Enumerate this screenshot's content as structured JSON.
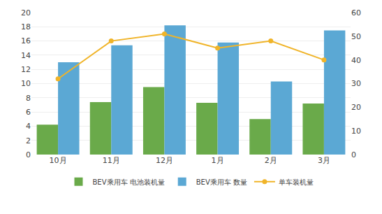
{
  "chart_data": {
    "type": "bar",
    "categories": [
      "10月",
      "11月",
      "12月",
      "1月",
      "2月",
      "3月"
    ],
    "series": [
      {
        "name": "BEV乘用车 电池装机量",
        "type": "bar",
        "color": "#6aaa4a",
        "values": [
          4.2,
          7.4,
          9.5,
          7.3,
          5.0,
          7.2
        ]
      },
      {
        "name": "BEV乘用车 数量",
        "type": "bar",
        "color": "#5ba8d4",
        "values": [
          13.0,
          15.4,
          18.2,
          15.8,
          10.3,
          17.5
        ]
      },
      {
        "name": "单车装机量",
        "type": "line",
        "axis": "y2",
        "color": "#f0b429",
        "marker": "circle",
        "line_style": "solid",
        "values": [
          32,
          48,
          51,
          45,
          48,
          40
        ]
      }
    ],
    "ylim": [
      0,
      20
    ],
    "yticks": [
      0,
      2,
      4,
      6,
      8,
      10,
      12,
      14,
      16,
      18,
      20
    ],
    "y2lim": [
      0,
      60
    ],
    "y2ticks": [
      0,
      10,
      20,
      30,
      40,
      50,
      60
    ],
    "grid": true,
    "legend": "bottom"
  }
}
